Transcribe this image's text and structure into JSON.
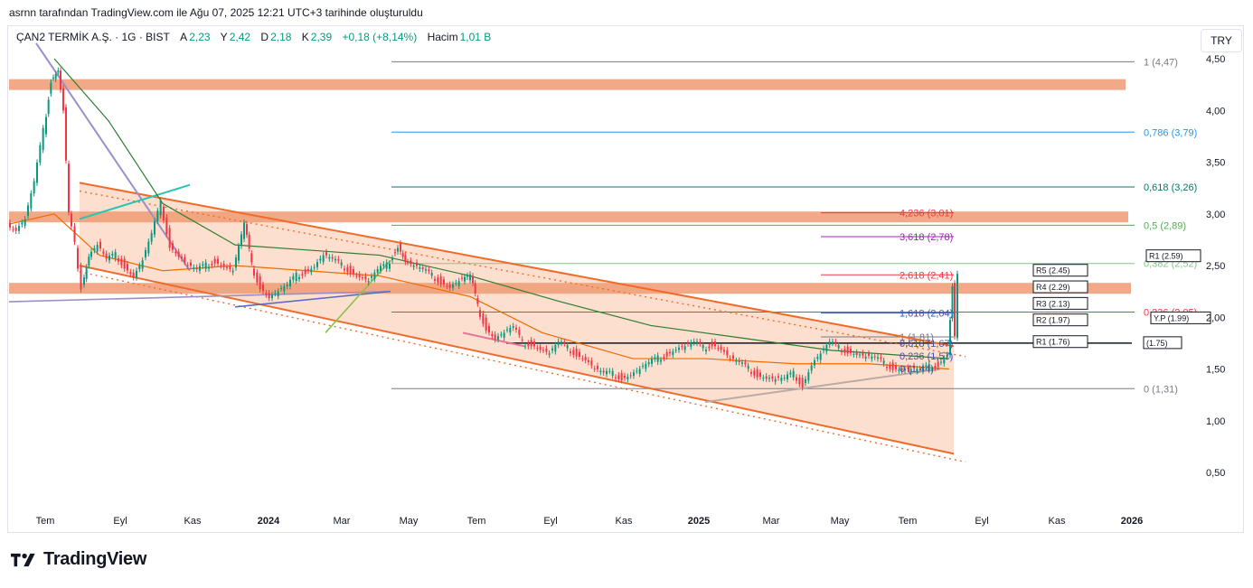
{
  "caption": "asrnn tarafından TradingView.com ile Ağu 07, 2025 12:21 UTC+3 tarihinde oluşturuldu",
  "legend": {
    "symbol": "ÇAN2 TERMİK A.Ş. · 1G · BIST",
    "open_label": "A",
    "open": "2,23",
    "high_label": "Y",
    "high": "2,42",
    "low_label": "D",
    "low": "2,18",
    "close_label": "K",
    "close": "2,39",
    "change": "+0,18 (+8,14%)",
    "volume_label": "Hacim",
    "volume": "1,01 B"
  },
  "currency": "TRY",
  "brand": "TradingView",
  "colors": {
    "up": "#089981",
    "down": "#f23645",
    "zone": "#f0a07a",
    "channel": "#f06a2a",
    "fill": "#fbd9c6"
  },
  "chart_data": {
    "type": "candlestick",
    "x_ticks": [
      "Tem",
      "Eyl",
      "Kas",
      "2024",
      "Mar",
      "May",
      "Tem",
      "Eyl",
      "Kas",
      "2025",
      "Mar",
      "May",
      "Tem",
      "Eyl",
      "Kas",
      "2026"
    ],
    "y_ticks": [
      "4,50",
      "4,00",
      "3,50",
      "3,00",
      "2,50",
      "2,00",
      "1,50",
      "1,00",
      "0,50"
    ],
    "ylim": [
      0.2,
      4.7
    ],
    "fib_extension_levels": [
      {
        "label": "4,236 (3,01)",
        "value": 3.01,
        "color": "#f23645"
      },
      {
        "label": "3,618 (2,78)",
        "value": 2.78,
        "color": "#9c27b0"
      },
      {
        "label": "2,618 (2,41)",
        "value": 2.41,
        "color": "#f23645"
      },
      {
        "label": "1,618 (2,04)",
        "value": 2.04,
        "color": "#3f51b5"
      },
      {
        "label": "1 (1,81)",
        "value": 1.81,
        "color": "#787b86"
      }
    ],
    "fib_retracement_levels": [
      {
        "label": "1 (4,47)",
        "value": 4.47,
        "color": "#787b86"
      },
      {
        "label": "0,786 (3,79)",
        "value": 3.79,
        "color": "#2196f3"
      },
      {
        "label": "0,618 (3,26)",
        "value": 3.26,
        "color": "#00796b"
      },
      {
        "label": "0,5 (2,89)",
        "value": 2.89,
        "color": "#4caf50"
      },
      {
        "label": "0,382 (2,52)",
        "value": 2.52,
        "color": "#81c784"
      },
      {
        "label": "0,236 (2,05)",
        "value": 2.05,
        "color": "#f23645"
      },
      {
        "label": "0 (1,31)",
        "value": 1.31,
        "color": "#787b86"
      }
    ],
    "pivots": [
      {
        "label": "R1 (2.59)",
        "value": 2.59
      },
      {
        "label": "R5 (2.45)",
        "value": 2.45
      },
      {
        "label": "R4 (2.29)",
        "value": 2.29
      },
      {
        "label": "R3 (2.13)",
        "value": 2.13
      },
      {
        "label": "R2 (1.97)",
        "value": 1.97
      },
      {
        "label": "Y.P (1.99)",
        "value": 1.99
      },
      {
        "label": "R1 (1.76)",
        "value": 1.76
      },
      {
        "label": "(1.75)",
        "value": 1.75
      }
    ],
    "resistance_zones": [
      4.25,
      2.97,
      2.28
    ],
    "small_labels": [
      "0,618 (1,67)",
      "0,236 (1,57)",
      "0 (1,44)"
    ],
    "price_path": [
      [
        0,
        2.9
      ],
      [
        10,
        2.85
      ],
      [
        20,
        2.95
      ],
      [
        30,
        3.3
      ],
      [
        40,
        3.8
      ],
      [
        48,
        4.3
      ],
      [
        56,
        4.4
      ],
      [
        62,
        4.0
      ],
      [
        68,
        3.0
      ],
      [
        75,
        2.7
      ],
      [
        82,
        2.3
      ],
      [
        90,
        2.6
      ],
      [
        100,
        2.7
      ],
      [
        110,
        2.55
      ],
      [
        120,
        2.6
      ],
      [
        130,
        2.5
      ],
      [
        140,
        2.4
      ],
      [
        150,
        2.55
      ],
      [
        160,
        2.8
      ],
      [
        170,
        3.1
      ],
      [
        180,
        2.7
      ],
      [
        190,
        2.6
      ],
      [
        200,
        2.5
      ],
      [
        210,
        2.45
      ],
      [
        220,
        2.5
      ],
      [
        230,
        2.55
      ],
      [
        240,
        2.5
      ],
      [
        250,
        2.45
      ],
      [
        262,
        2.9
      ],
      [
        270,
        2.5
      ],
      [
        280,
        2.3
      ],
      [
        290,
        2.2
      ],
      [
        300,
        2.25
      ],
      [
        310,
        2.3
      ],
      [
        320,
        2.4
      ],
      [
        330,
        2.45
      ],
      [
        340,
        2.5
      ],
      [
        350,
        2.6
      ],
      [
        360,
        2.55
      ],
      [
        370,
        2.5
      ],
      [
        380,
        2.45
      ],
      [
        390,
        2.4
      ],
      [
        400,
        2.35
      ],
      [
        410,
        2.45
      ],
      [
        420,
        2.5
      ],
      [
        432,
        2.7
      ],
      [
        440,
        2.55
      ],
      [
        450,
        2.5
      ],
      [
        460,
        2.45
      ],
      [
        470,
        2.4
      ],
      [
        480,
        2.35
      ],
      [
        490,
        2.3
      ],
      [
        500,
        2.35
      ],
      [
        512,
        2.4
      ],
      [
        520,
        2.1
      ],
      [
        530,
        1.9
      ],
      [
        540,
        1.8
      ],
      [
        550,
        1.85
      ],
      [
        560,
        1.9
      ],
      [
        570,
        1.75
      ],
      [
        580,
        1.75
      ],
      [
        590,
        1.7
      ],
      [
        600,
        1.65
      ],
      [
        610,
        1.75
      ],
      [
        620,
        1.7
      ],
      [
        630,
        1.65
      ],
      [
        640,
        1.6
      ],
      [
        650,
        1.5
      ],
      [
        660,
        1.45
      ],
      [
        670,
        1.45
      ],
      [
        680,
        1.42
      ],
      [
        690,
        1.45
      ],
      [
        700,
        1.5
      ],
      [
        710,
        1.55
      ],
      [
        720,
        1.6
      ],
      [
        730,
        1.65
      ],
      [
        740,
        1.7
      ],
      [
        750,
        1.72
      ],
      [
        760,
        1.75
      ],
      [
        770,
        1.7
      ],
      [
        780,
        1.75
      ],
      [
        790,
        1.7
      ],
      [
        800,
        1.6
      ],
      [
        810,
        1.55
      ],
      [
        820,
        1.5
      ],
      [
        830,
        1.45
      ],
      [
        840,
        1.42
      ],
      [
        850,
        1.4
      ],
      [
        860,
        1.4
      ],
      [
        870,
        1.45
      ],
      [
        880,
        1.35
      ],
      [
        890,
        1.55
      ],
      [
        900,
        1.65
      ],
      [
        910,
        1.75
      ],
      [
        920,
        1.7
      ],
      [
        930,
        1.68
      ],
      [
        940,
        1.65
      ],
      [
        950,
        1.62
      ],
      [
        960,
        1.6
      ],
      [
        970,
        1.55
      ],
      [
        980,
        1.52
      ],
      [
        990,
        1.5
      ],
      [
        1000,
        1.5
      ],
      [
        1010,
        1.48
      ],
      [
        1020,
        1.52
      ],
      [
        1030,
        1.55
      ],
      [
        1040,
        1.65
      ],
      [
        1045,
        2.3
      ],
      [
        1048,
        1.8
      ],
      [
        1052,
        2.39
      ]
    ]
  }
}
